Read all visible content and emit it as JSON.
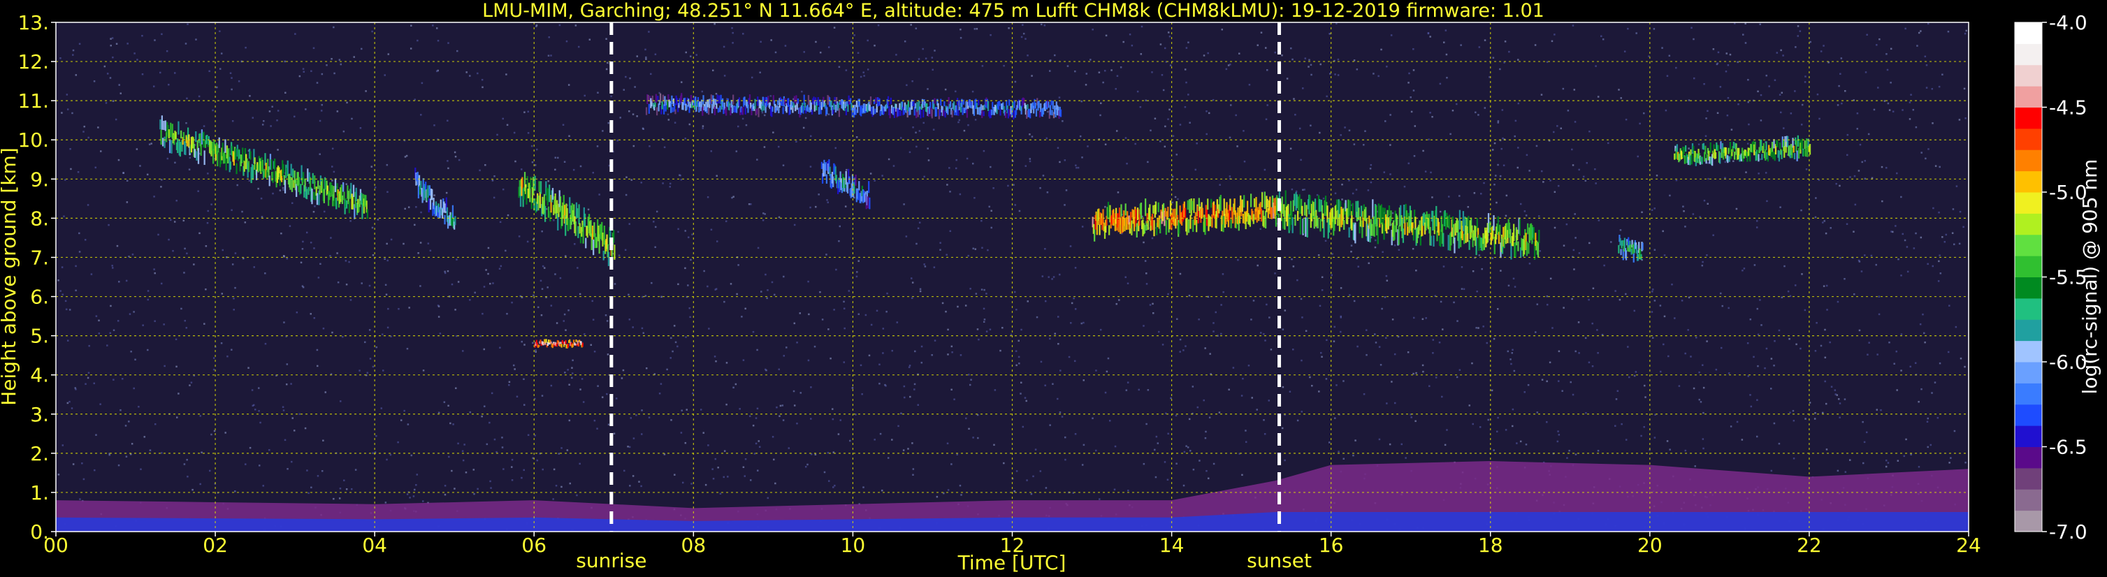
{
  "chart_data": {
    "type": "heatmap",
    "title": "LMU-MIM, Garching; 48.251° N 11.664° E, altitude: 475 m    Lufft CHM8k (CHM8kLMU): 19-12-2019    firmware: 1.01",
    "xlabel": "Time [UTC]",
    "ylabel": "Height above ground [km]",
    "xlim": [
      0,
      24
    ],
    "ylim": [
      0,
      13
    ],
    "x_ticks": [
      0,
      2,
      4,
      6,
      8,
      10,
      12,
      14,
      16,
      18,
      20,
      22,
      24
    ],
    "x_tick_labels": [
      "00",
      "02",
      "04",
      "06",
      "08",
      "10",
      "12",
      "14",
      "16",
      "18",
      "20",
      "22",
      "24"
    ],
    "y_ticks": [
      0,
      1,
      2,
      3,
      4,
      5,
      6,
      7,
      8,
      9,
      10,
      11,
      12,
      13
    ],
    "y_tick_labels": [
      "0.",
      "1.",
      "2.",
      "3.",
      "4.",
      "5.",
      "6.",
      "7.",
      "8.",
      "9.",
      "10.",
      "11.",
      "12.",
      "13."
    ],
    "grid": true,
    "markers": [
      {
        "label": "sunrise",
        "x": 6.97
      },
      {
        "label": "sunset",
        "x": 15.35
      }
    ],
    "colorbar": {
      "label": "log(rc-signal) @ 905 nm",
      "range": [
        -7.0,
        -4.0
      ],
      "tick_values": [
        -4.0,
        -4.5,
        -5.0,
        -5.5,
        -6.0,
        -6.5,
        -7.0
      ],
      "tick_labels": [
        "-4.0",
        "-4.5",
        "-5.0",
        "-5.5",
        "-6.0",
        "-6.5",
        "-7.0"
      ],
      "colors": [
        "#a898a8",
        "#8a6a90",
        "#70407a",
        "#5a0a8a",
        "#2010d0",
        "#1e4cff",
        "#3a7cff",
        "#6aa0ff",
        "#a0c4ff",
        "#20a0a0",
        "#20c080",
        "#008a20",
        "#30c030",
        "#60e040",
        "#b0f020",
        "#f0f020",
        "#ffc000",
        "#ff8000",
        "#ff4000",
        "#ff0000",
        "#f0a0a0",
        "#f0d0d0",
        "#f4f0f0",
        "#ffffff"
      ]
    },
    "cloud_layers": [
      {
        "t_start": 1.3,
        "t_end": 3.9,
        "h_start": 10.2,
        "h_end": 8.3,
        "thick": 0.55,
        "intensity": -5.1
      },
      {
        "t_start": 4.5,
        "t_end": 5.0,
        "h_start": 8.9,
        "h_end": 7.9,
        "thick": 0.5,
        "intensity": -5.6
      },
      {
        "t_start": 5.8,
        "t_end": 7.0,
        "h_start": 8.9,
        "h_end": 7.2,
        "thick": 0.7,
        "intensity": -5.0
      },
      {
        "t_start": 7.4,
        "t_end": 12.6,
        "h_start": 10.9,
        "h_end": 10.8,
        "thick": 0.35,
        "intensity": -5.8
      },
      {
        "t_start": 9.6,
        "t_end": 10.2,
        "h_start": 9.2,
        "h_end": 8.6,
        "thick": 0.5,
        "intensity": -5.7
      },
      {
        "t_start": 13.0,
        "t_end": 15.3,
        "h_start": 7.9,
        "h_end": 8.2,
        "thick": 0.6,
        "intensity": -4.6
      },
      {
        "t_start": 15.3,
        "t_end": 18.6,
        "h_start": 8.2,
        "h_end": 7.4,
        "thick": 0.7,
        "intensity": -5.0
      },
      {
        "t_start": 19.6,
        "t_end": 19.9,
        "h_start": 7.3,
        "h_end": 7.1,
        "thick": 0.4,
        "intensity": -5.4
      },
      {
        "t_start": 20.3,
        "t_end": 22.0,
        "h_start": 9.6,
        "h_end": 9.8,
        "thick": 0.4,
        "intensity": -5.1
      },
      {
        "t_start": 6.0,
        "t_end": 6.6,
        "h_start": 4.8,
        "h_end": 4.8,
        "thick": 0.15,
        "intensity": -4.2
      }
    ],
    "boundary_layer": {
      "t": [
        0,
        2,
        4,
        6,
        7,
        8,
        10,
        12,
        14,
        15.3,
        16,
        18,
        20,
        22,
        24
      ],
      "h": [
        0.8,
        0.75,
        0.7,
        0.8,
        0.7,
        0.6,
        0.7,
        0.8,
        0.8,
        1.3,
        1.7,
        1.8,
        1.7,
        1.4,
        1.6
      ]
    }
  }
}
